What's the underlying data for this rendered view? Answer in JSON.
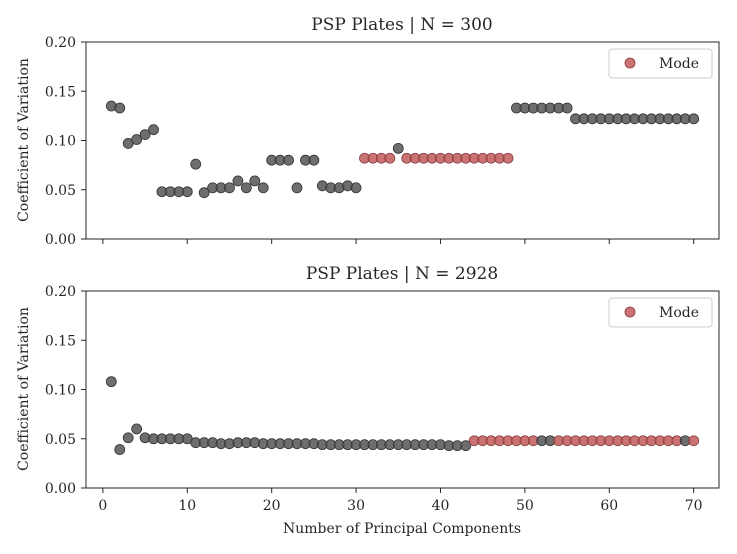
{
  "chart_data": [
    {
      "type": "scatter",
      "title": "PSP Plates | N = 300",
      "xlabel": "",
      "ylabel": "Coefficient of Variation",
      "xlim": [
        -2,
        73
      ],
      "ylim": [
        0,
        0.2
      ],
      "yticks": [
        "0.00",
        "0.05",
        "0.10",
        "0.15",
        "0.20"
      ],
      "grid": false,
      "legend": {
        "position": "top-right",
        "label": "Mode"
      },
      "colors": {
        "default": "#555555",
        "mode": "#c05a5a"
      },
      "x": [
        1,
        2,
        3,
        4,
        5,
        6,
        7,
        8,
        9,
        10,
        11,
        12,
        13,
        14,
        15,
        16,
        17,
        18,
        19,
        20,
        21,
        22,
        23,
        24,
        25,
        26,
        27,
        28,
        29,
        30,
        31,
        32,
        33,
        34,
        35,
        36,
        37,
        38,
        39,
        40,
        41,
        42,
        43,
        44,
        45,
        46,
        47,
        48,
        49,
        50,
        51,
        52,
        53,
        54,
        55,
        56,
        57,
        58,
        59,
        60,
        61,
        62,
        63,
        64,
        65,
        66,
        67,
        68,
        69,
        70
      ],
      "y": [
        0.135,
        0.133,
        0.097,
        0.101,
        0.106,
        0.111,
        0.048,
        0.048,
        0.048,
        0.048,
        0.076,
        0.047,
        0.052,
        0.052,
        0.052,
        0.059,
        0.052,
        0.059,
        0.052,
        0.08,
        0.08,
        0.08,
        0.052,
        0.08,
        0.08,
        0.054,
        0.052,
        0.052,
        0.054,
        0.052,
        0.082,
        0.082,
        0.082,
        0.082,
        0.092,
        0.082,
        0.082,
        0.082,
        0.082,
        0.082,
        0.082,
        0.082,
        0.082,
        0.082,
        0.082,
        0.082,
        0.082,
        0.082,
        0.133,
        0.133,
        0.133,
        0.133,
        0.133,
        0.133,
        0.133,
        0.122,
        0.122,
        0.122,
        0.122,
        0.122,
        0.122,
        0.122,
        0.122,
        0.122,
        0.122,
        0.122,
        0.122,
        0.122,
        0.122,
        0.122
      ],
      "mode": [
        false,
        false,
        false,
        false,
        false,
        false,
        false,
        false,
        false,
        false,
        false,
        false,
        false,
        false,
        false,
        false,
        false,
        false,
        false,
        false,
        false,
        false,
        false,
        false,
        false,
        false,
        false,
        false,
        false,
        false,
        true,
        true,
        true,
        true,
        false,
        true,
        true,
        true,
        true,
        true,
        true,
        true,
        true,
        true,
        true,
        true,
        true,
        true,
        false,
        false,
        false,
        false,
        false,
        false,
        false,
        false,
        false,
        false,
        false,
        false,
        false,
        false,
        false,
        false,
        false,
        false,
        false,
        false,
        false,
        false
      ]
    },
    {
      "type": "scatter",
      "title": "PSP Plates | N = 2928",
      "xlabel": "Number of Principal Components",
      "ylabel": "Coefficient of Variation",
      "xlim": [
        -2,
        73
      ],
      "ylim": [
        0,
        0.2
      ],
      "xticks": [
        0,
        10,
        20,
        30,
        40,
        50,
        60,
        70
      ],
      "yticks": [
        "0.00",
        "0.05",
        "0.10",
        "0.15",
        "0.20"
      ],
      "grid": false,
      "legend": {
        "position": "top-right",
        "label": "Mode"
      },
      "colors": {
        "default": "#555555",
        "mode": "#c05a5a"
      },
      "x": [
        1,
        2,
        3,
        4,
        5,
        6,
        7,
        8,
        9,
        10,
        11,
        12,
        13,
        14,
        15,
        16,
        17,
        18,
        19,
        20,
        21,
        22,
        23,
        24,
        25,
        26,
        27,
        28,
        29,
        30,
        31,
        32,
        33,
        34,
        35,
        36,
        37,
        38,
        39,
        40,
        41,
        42,
        43,
        44,
        45,
        46,
        47,
        48,
        49,
        50,
        51,
        52,
        53,
        54,
        55,
        56,
        57,
        58,
        59,
        60,
        61,
        62,
        63,
        64,
        65,
        66,
        67,
        68,
        69,
        70
      ],
      "y": [
        0.108,
        0.039,
        0.051,
        0.06,
        0.051,
        0.05,
        0.05,
        0.05,
        0.05,
        0.05,
        0.046,
        0.046,
        0.046,
        0.045,
        0.045,
        0.046,
        0.046,
        0.046,
        0.045,
        0.045,
        0.045,
        0.045,
        0.045,
        0.045,
        0.045,
        0.044,
        0.044,
        0.044,
        0.044,
        0.044,
        0.044,
        0.044,
        0.044,
        0.044,
        0.044,
        0.044,
        0.044,
        0.044,
        0.044,
        0.044,
        0.043,
        0.043,
        0.043,
        0.048,
        0.048,
        0.048,
        0.048,
        0.048,
        0.048,
        0.048,
        0.048,
        0.048,
        0.048,
        0.048,
        0.048,
        0.048,
        0.048,
        0.048,
        0.048,
        0.048,
        0.048,
        0.048,
        0.048,
        0.048,
        0.048,
        0.048,
        0.048,
        0.048,
        0.048,
        0.048
      ],
      "mode": [
        false,
        false,
        false,
        false,
        false,
        false,
        false,
        false,
        false,
        false,
        false,
        false,
        false,
        false,
        false,
        false,
        false,
        false,
        false,
        false,
        false,
        false,
        false,
        false,
        false,
        false,
        false,
        false,
        false,
        false,
        false,
        false,
        false,
        false,
        false,
        false,
        false,
        false,
        false,
        false,
        false,
        false,
        false,
        true,
        true,
        true,
        true,
        true,
        true,
        true,
        true,
        false,
        false,
        true,
        true,
        true,
        true,
        true,
        true,
        true,
        true,
        true,
        true,
        true,
        true,
        true,
        true,
        true,
        false,
        true
      ]
    }
  ]
}
